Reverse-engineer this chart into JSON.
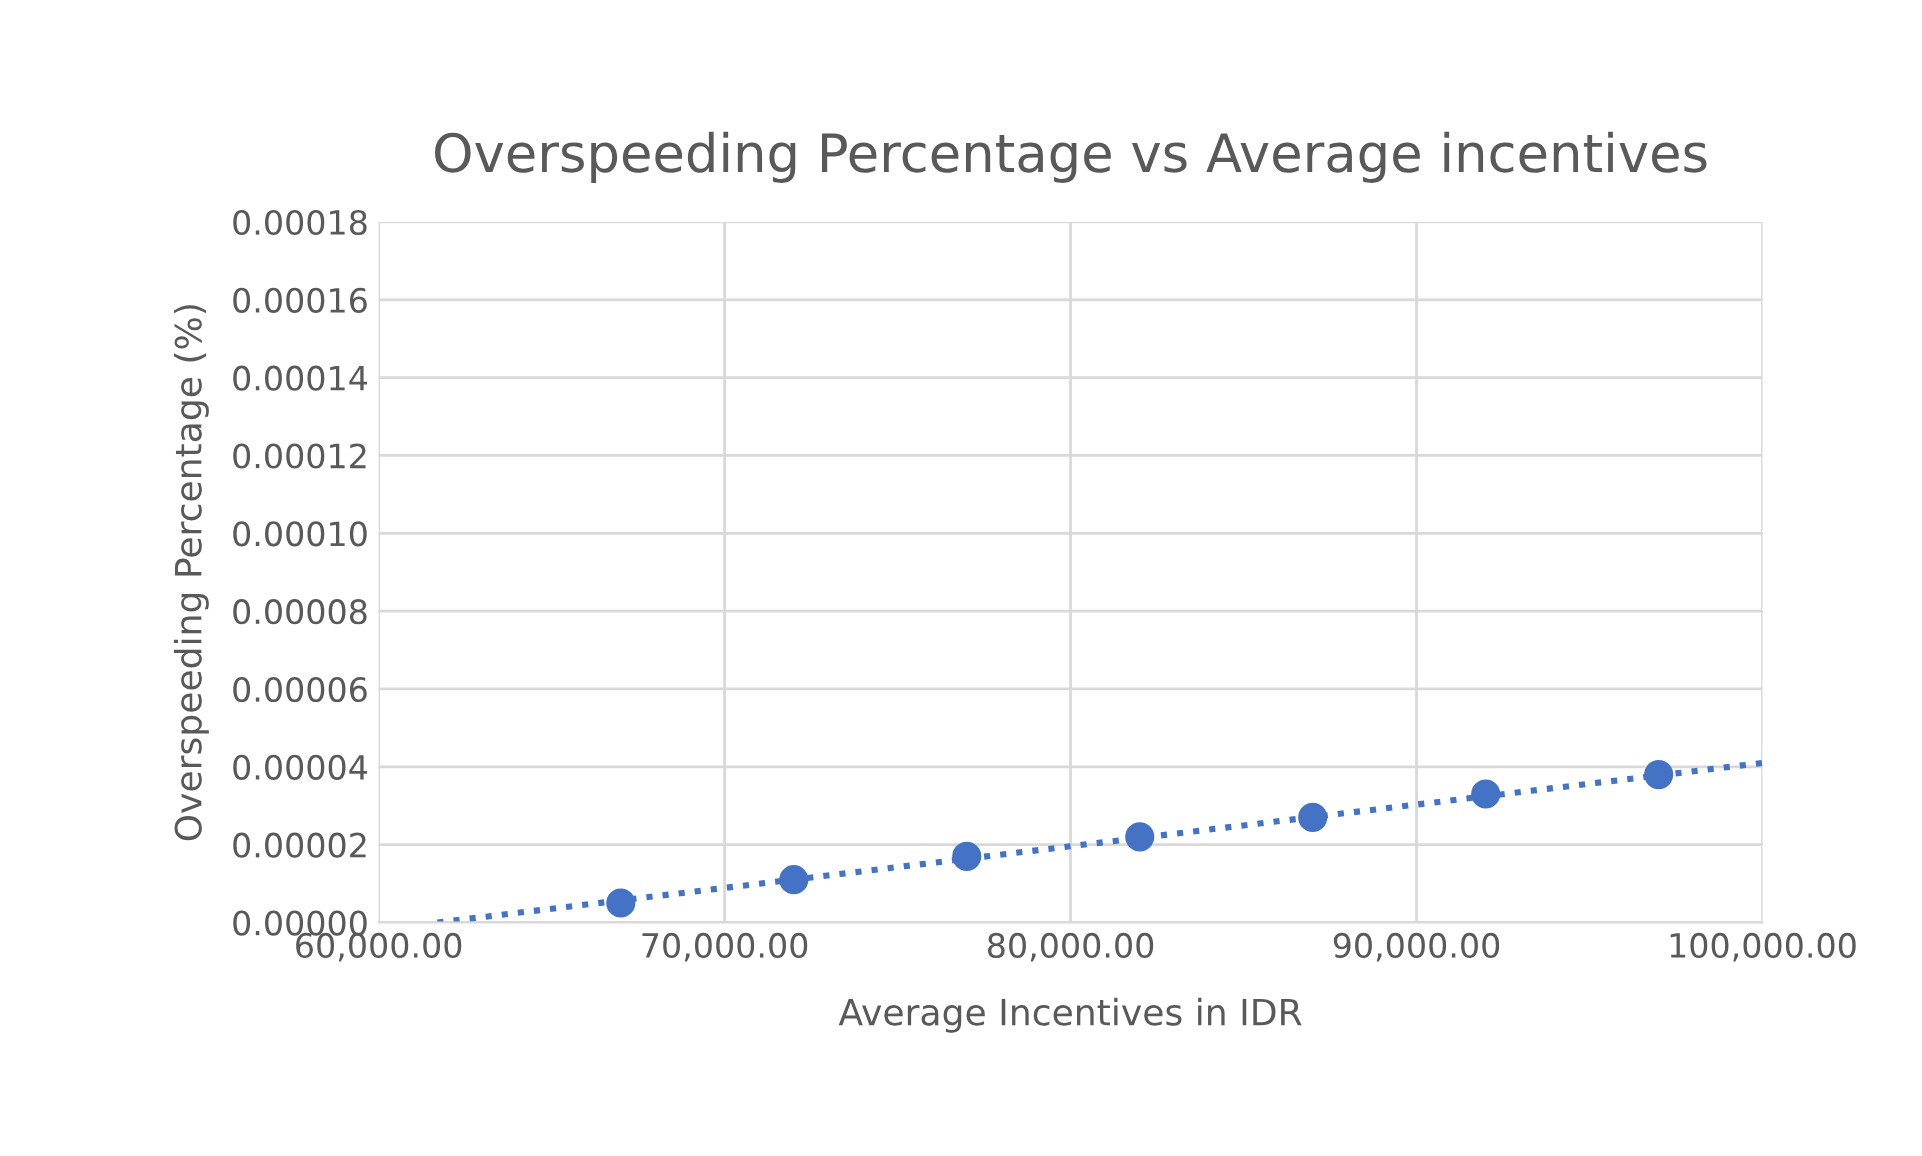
{
  "chart_data": {
    "type": "scatter",
    "title": "Overspeeding Percentage vs Average incentives",
    "xlabel": "Average Incentives in IDR",
    "ylabel": "Overspeeding Percentage (%)",
    "x": [
      67000,
      72000,
      77000,
      82000,
      87000,
      92000,
      97000
    ],
    "series": [
      {
        "color": "#4472c4",
        "marker": "circle",
        "values": [
          5e-06,
          1.1e-05,
          1.7e-05,
          2.2e-05,
          2.7e-05,
          3.3e-05,
          3.8e-05
        ]
      },
      {
        "type": "line",
        "color": "#4472c4",
        "line_style": "dotted",
        "marker": "none",
        "x": [
          61700,
          100000
        ],
        "values": [
          0,
          4.1e-05
        ]
      }
    ],
    "xlim": [
      60000,
      100000
    ],
    "xticks": [
      {
        "value": 60000,
        "label": "60,000.00"
      },
      {
        "value": 70000,
        "label": "70,000.00"
      },
      {
        "value": 80000,
        "label": "80,000.00"
      },
      {
        "value": 90000,
        "label": "90,000.00"
      },
      {
        "value": 100000,
        "label": "100,000.00"
      }
    ],
    "ylim": [
      0,
      0.00018
    ],
    "yticks": [
      {
        "value": 0,
        "label": "0.00000"
      },
      {
        "value": 2e-05,
        "label": "0.00002"
      },
      {
        "value": 4e-05,
        "label": "0.00004"
      },
      {
        "value": 6e-05,
        "label": "0.00006"
      },
      {
        "value": 8e-05,
        "label": "0.00008"
      },
      {
        "value": 0.0001,
        "label": "0.00010"
      },
      {
        "value": 0.00012,
        "label": "0.00012"
      },
      {
        "value": 0.00014,
        "label": "0.00014"
      },
      {
        "value": 0.00016,
        "label": "0.00016"
      },
      {
        "value": 0.00018,
        "label": "0.00018"
      }
    ],
    "grid": true
  }
}
